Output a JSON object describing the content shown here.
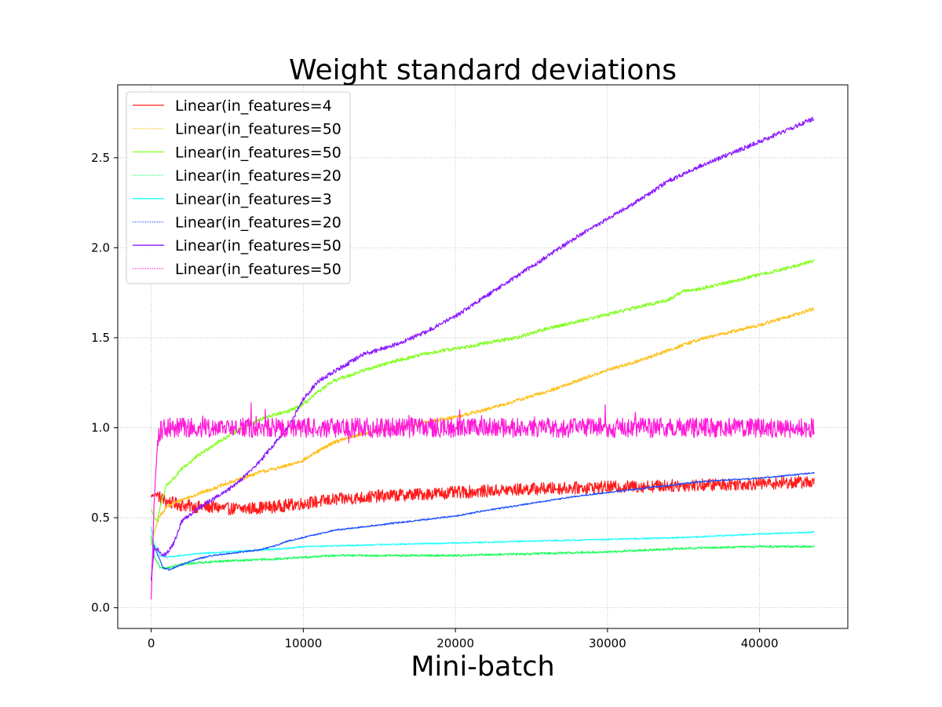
{
  "chart_data": {
    "type": "line",
    "title": "Weight standard deviations",
    "xlabel": "Mini-batch",
    "ylabel": "",
    "xlim": [
      -2200,
      45800
    ],
    "ylim": [
      -0.115,
      2.905
    ],
    "xticks": [
      0,
      10000,
      20000,
      30000,
      40000
    ],
    "xtick_labels": [
      "0",
      "10000",
      "20000",
      "30000",
      "40000"
    ],
    "yticks": [
      0.0,
      0.5,
      1.0,
      1.5,
      2.0,
      2.5
    ],
    "ytick_labels": [
      "0.0",
      "0.5",
      "1.0",
      "1.5",
      "2.0",
      "2.5"
    ],
    "grid": true,
    "legend_position": "top-left",
    "series": [
      {
        "name": "Linear(in_features=4",
        "color": "#ff1a1a",
        "style": "solid",
        "noise": 0.035,
        "x": [
          0,
          300,
          1000,
          2000,
          3000,
          4000,
          5000,
          6000,
          8000,
          10000,
          12000,
          15000,
          20000,
          25000,
          30000,
          35000,
          40000,
          43600
        ],
        "y": [
          0.62,
          0.63,
          0.59,
          0.57,
          0.56,
          0.56,
          0.55,
          0.55,
          0.56,
          0.58,
          0.6,
          0.62,
          0.64,
          0.66,
          0.67,
          0.68,
          0.69,
          0.7
        ]
      },
      {
        "name": "Linear(in_features=50",
        "color": "#ffbf1a",
        "style": "dotted",
        "noise": 0.01,
        "x": [
          0,
          200,
          500,
          1000,
          2000,
          3000,
          4000,
          5000,
          6000,
          7000,
          8000,
          9000,
          10000,
          11000,
          12000,
          14000,
          16000,
          18000,
          20000,
          22000,
          24000,
          26000,
          28000,
          30000,
          32000,
          34000,
          36000,
          38000,
          40000,
          42000,
          43600
        ],
        "y": [
          0.35,
          0.42,
          0.5,
          0.56,
          0.6,
          0.63,
          0.66,
          0.69,
          0.72,
          0.75,
          0.77,
          0.79,
          0.82,
          0.87,
          0.92,
          0.97,
          1.0,
          1.03,
          1.06,
          1.1,
          1.15,
          1.2,
          1.26,
          1.32,
          1.37,
          1.43,
          1.49,
          1.53,
          1.57,
          1.62,
          1.66
        ]
      },
      {
        "name": "Linear(in_features=50",
        "color": "#80ff1a",
        "style": "solid",
        "noise": 0.01,
        "x": [
          0,
          200,
          400,
          700,
          1000,
          1500,
          2000,
          3000,
          4000,
          5000,
          6000,
          7000,
          8000,
          9000,
          10000,
          11000,
          12000,
          14000,
          16000,
          18000,
          20000,
          22000,
          24000,
          26000,
          28000,
          30000,
          32000,
          34000,
          35000,
          36000,
          38000,
          40000,
          42000,
          43600
        ],
        "y": [
          0.55,
          0.5,
          0.48,
          0.6,
          0.68,
          0.72,
          0.77,
          0.84,
          0.9,
          0.95,
          1.0,
          1.04,
          1.07,
          1.09,
          1.13,
          1.2,
          1.26,
          1.32,
          1.37,
          1.41,
          1.44,
          1.47,
          1.5,
          1.55,
          1.59,
          1.63,
          1.67,
          1.71,
          1.76,
          1.77,
          1.81,
          1.85,
          1.89,
          1.93
        ]
      },
      {
        "name": "Linear(in_features=20",
        "color": "#1aff5a",
        "style": "dotted",
        "noise": 0.006,
        "x": [
          0,
          200,
          600,
          1000,
          1500,
          2000,
          3000,
          5000,
          8000,
          10000,
          12000,
          14000,
          16000,
          20000,
          25000,
          30000,
          35000,
          40000,
          43600
        ],
        "y": [
          0.4,
          0.28,
          0.22,
          0.22,
          0.23,
          0.24,
          0.25,
          0.26,
          0.27,
          0.28,
          0.29,
          0.29,
          0.29,
          0.29,
          0.3,
          0.31,
          0.33,
          0.34,
          0.34
        ]
      },
      {
        "name": "Linear(in_features=3",
        "color": "#1affff",
        "style": "solid",
        "noise": 0.004,
        "x": [
          0,
          200,
          600,
          1000,
          2000,
          3000,
          5000,
          7000,
          9000,
          10000,
          15000,
          20000,
          25000,
          30000,
          35000,
          40000,
          43600
        ],
        "y": [
          0.45,
          0.35,
          0.29,
          0.28,
          0.29,
          0.3,
          0.31,
          0.32,
          0.33,
          0.34,
          0.35,
          0.36,
          0.37,
          0.38,
          0.39,
          0.41,
          0.42
        ]
      },
      {
        "name": "Linear(in_features=20",
        "color": "#1a4dff",
        "style": "dotted",
        "noise": 0.004,
        "x": [
          0,
          150,
          400,
          800,
          1200,
          2000,
          3000,
          4000,
          5000,
          6000,
          7000,
          8000,
          9000,
          10000,
          12000,
          14000,
          16000,
          18000,
          20000,
          22000,
          25000,
          28000,
          30000,
          33000,
          36000,
          40000,
          43600
        ],
        "y": [
          0.15,
          0.35,
          0.3,
          0.22,
          0.21,
          0.24,
          0.27,
          0.29,
          0.3,
          0.31,
          0.32,
          0.34,
          0.37,
          0.39,
          0.43,
          0.45,
          0.47,
          0.49,
          0.51,
          0.54,
          0.58,
          0.62,
          0.64,
          0.67,
          0.7,
          0.72,
          0.75
        ]
      },
      {
        "name": "Linear(in_features=50",
        "color": "#8c1aff",
        "style": "solid",
        "noise": 0.012,
        "x": [
          0,
          200,
          500,
          800,
          1000,
          1500,
          2000,
          3000,
          4000,
          5000,
          6000,
          7000,
          8000,
          9000,
          9500,
          10000,
          11000,
          12000,
          13000,
          14000,
          16000,
          18000,
          20000,
          22000,
          24000,
          26000,
          28000,
          30000,
          32000,
          34000,
          36000,
          38000,
          40000,
          42000,
          43600
        ],
        "y": [
          0.15,
          0.33,
          0.32,
          0.29,
          0.3,
          0.36,
          0.48,
          0.55,
          0.6,
          0.65,
          0.72,
          0.8,
          0.9,
          1.0,
          1.08,
          1.16,
          1.26,
          1.31,
          1.36,
          1.41,
          1.46,
          1.53,
          1.62,
          1.73,
          1.84,
          1.95,
          2.06,
          2.16,
          2.26,
          2.37,
          2.45,
          2.52,
          2.59,
          2.66,
          2.72
        ]
      },
      {
        "name": "Linear(in_features=50",
        "color": "#ff1ad9",
        "style": "dotted",
        "noise": 0.055,
        "x": [
          0,
          200,
          400,
          600,
          1000,
          3000,
          6000,
          10000,
          15000,
          20000,
          25000,
          30000,
          35000,
          40000,
          43600
        ],
        "y": [
          0.05,
          0.6,
          0.9,
          0.98,
          1.0,
          1.0,
          1.0,
          1.0,
          1.0,
          1.0,
          1.0,
          1.0,
          1.0,
          1.0,
          1.0
        ]
      }
    ]
  }
}
